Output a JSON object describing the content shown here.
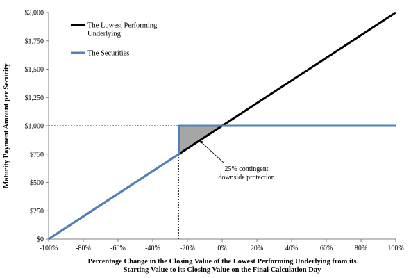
{
  "chart_data": {
    "type": "line",
    "title": "",
    "xlabel_lines": [
      "Percentage Change in the Closing Value of the Lowest Performing Underlying from its",
      "Starting Value to its Closing Value on the Final Calculation Day"
    ],
    "ylabel": "Maturity Payment Amount per Security",
    "xlim": [
      -100,
      100
    ],
    "ylim": [
      0,
      2000
    ],
    "x_ticks": [
      -100,
      -80,
      -60,
      -40,
      -20,
      0,
      20,
      40,
      60,
      80,
      100
    ],
    "x_tick_labels": [
      "-100%",
      "-80%",
      "-60%",
      "-40%",
      "-20%",
      "0%",
      "20%",
      "40%",
      "60%",
      "80%",
      "100%"
    ],
    "y_ticks": [
      0,
      250,
      500,
      750,
      1000,
      1250,
      1500,
      1750,
      2000
    ],
    "y_tick_labels": [
      "$0",
      "$250",
      "$500",
      "$750",
      "$1,000",
      "$1,250",
      "$1,500",
      "$1,750",
      "$2,000"
    ],
    "grid": false,
    "legend_position": "top-left",
    "series": [
      {
        "name": "The Lowest Performing Underlying",
        "name_lines": [
          "The Lowest Performing",
          "Underlying"
        ],
        "color": "#000000",
        "x": [
          -100,
          100
        ],
        "y": [
          0,
          2000
        ]
      },
      {
        "name": "The Securities",
        "name_lines": [
          "The Securities"
        ],
        "color": "#4F81BD",
        "x": [
          -100,
          -25,
          -25,
          100
        ],
        "y": [
          0,
          750,
          1000,
          1000
        ]
      }
    ],
    "reference_lines": [
      {
        "orientation": "vertical",
        "x": -25,
        "y_from": 0,
        "y_to": 1000
      },
      {
        "orientation": "horizontal",
        "y": 1000,
        "x_from": -100,
        "x_to": -25
      }
    ],
    "shaded_region": {
      "color": "#A6A6A6",
      "points": [
        [
          -25,
          750
        ],
        [
          -25,
          1000
        ],
        [
          0,
          1000
        ]
      ]
    },
    "annotation": {
      "text_lines": [
        "25% contingent",
        "downside protection"
      ],
      "arrow_target": [
        -13,
        870
      ],
      "anchor": [
        2,
        620
      ]
    }
  }
}
